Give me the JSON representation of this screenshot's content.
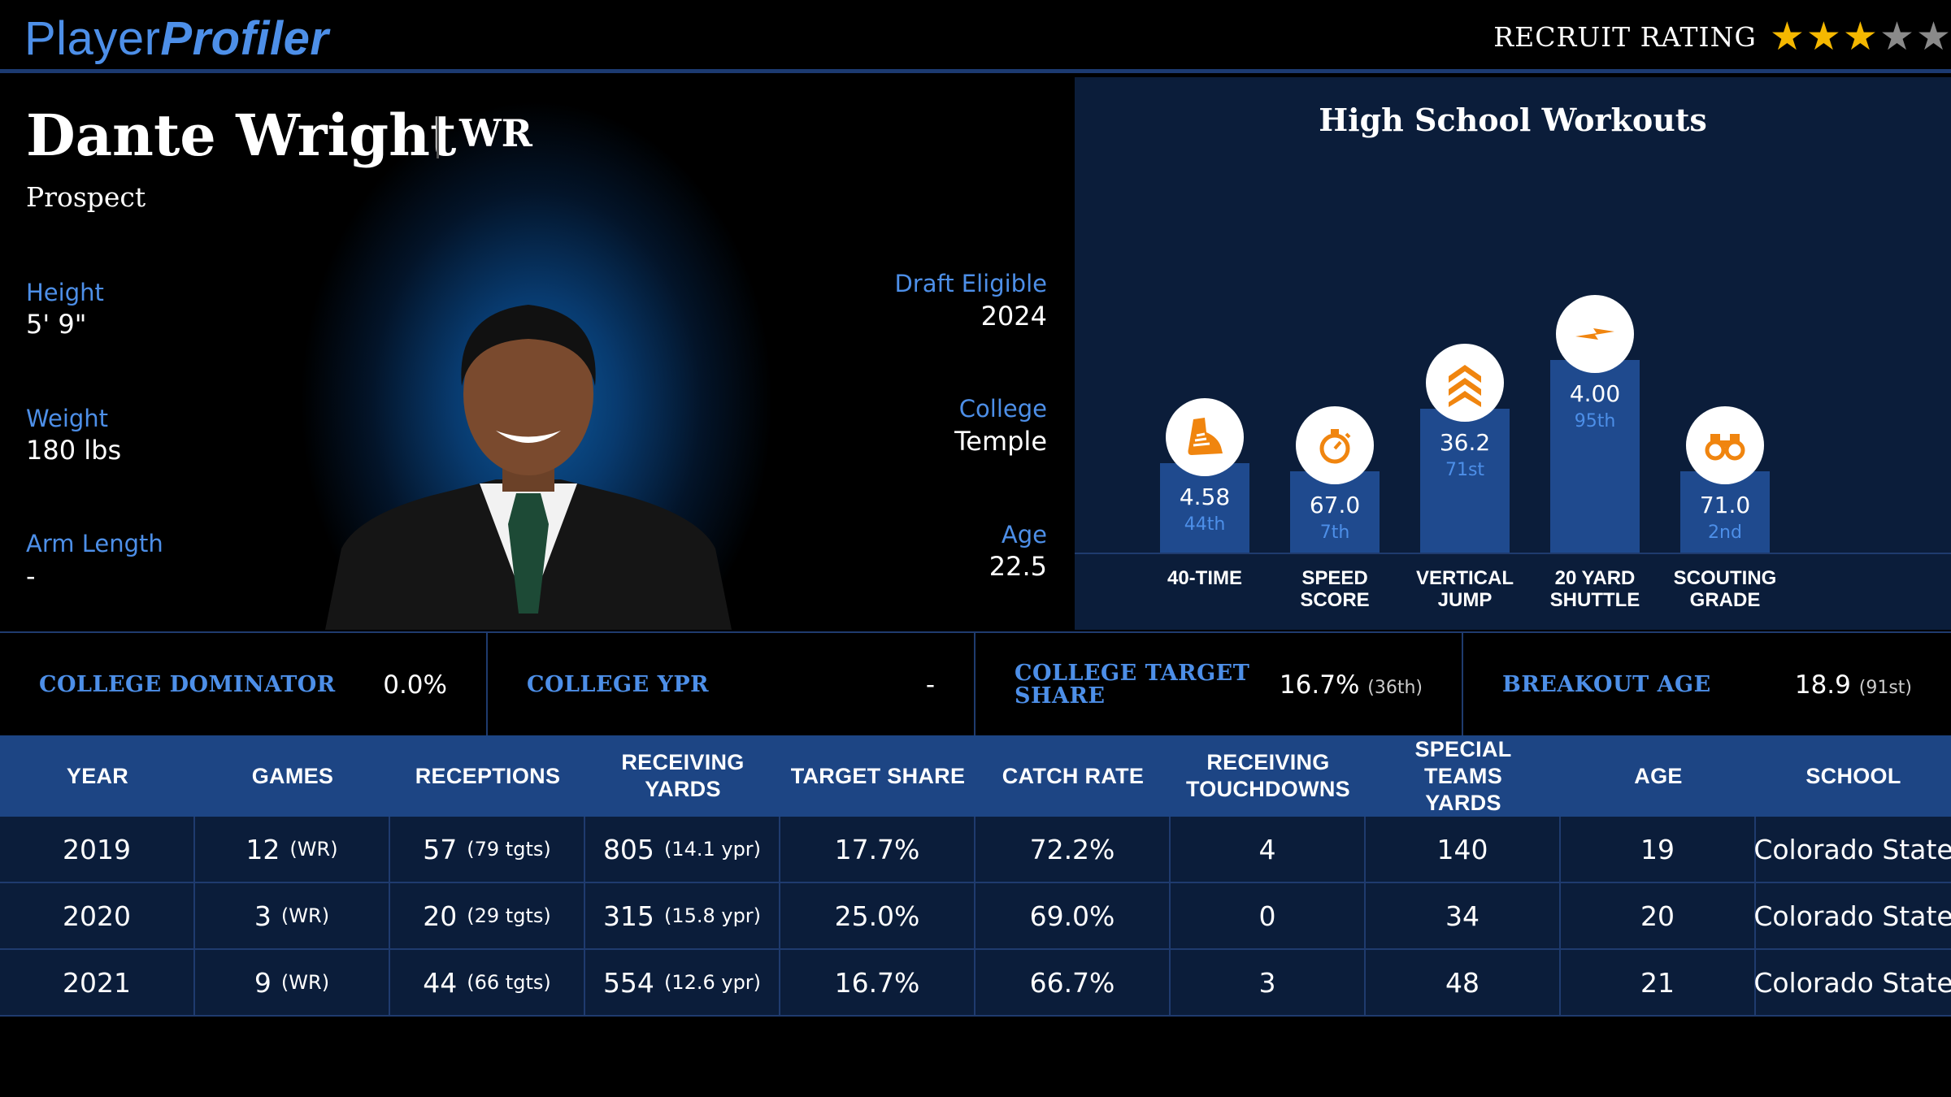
{
  "header": {
    "logo_part1": "Player",
    "logo_part2": "Profiler",
    "rating_label": "RECRUIT RATING",
    "rating_value": 3,
    "rating_max": 5,
    "star_on_color": "#f5b800",
    "star_off_color": "#8a8a8a"
  },
  "player": {
    "name": "Dante Wright",
    "position": "WR",
    "status": "Prospect",
    "height_label": "Height",
    "height": "5' 9\"",
    "weight_label": "Weight",
    "weight": "180 lbs",
    "arm_label": "Arm Length",
    "arm": "-",
    "draft_label": "Draft Eligible",
    "draft": "2024",
    "college_label": "College",
    "college": "Temple",
    "age_label": "Age",
    "age": "22.5"
  },
  "workouts": {
    "title": "High School Workouts",
    "items": [
      {
        "label_line1": "40-TIME",
        "label_line2": "",
        "value": "4.58",
        "percentile": "44th",
        "percentile_value": 44,
        "icon": "shoe-icon"
      },
      {
        "label_line1": "SPEED",
        "label_line2": "SCORE",
        "value": "67.0",
        "percentile": "7th",
        "percentile_value": 7,
        "icon": "stopwatch-icon"
      },
      {
        "label_line1": "VERTICAL",
        "label_line2": "JUMP",
        "value": "36.2",
        "percentile": "71st",
        "percentile_value": 71,
        "icon": "chevrons-up-icon"
      },
      {
        "label_line1": "20 YARD",
        "label_line2": "SHUTTLE",
        "value": "4.00",
        "percentile": "95th",
        "percentile_value": 95,
        "icon": "lightning-icon"
      },
      {
        "label_line1": "SCOUTING",
        "label_line2": "GRADE",
        "value": "71.0",
        "percentile": "2nd",
        "percentile_value": 2,
        "icon": "binoculars-icon"
      }
    ]
  },
  "metrics": [
    {
      "label": "COLLEGE DOMINATOR",
      "value": "0.0%",
      "sub": ""
    },
    {
      "label": "COLLEGE YPR",
      "value": "-",
      "sub": ""
    },
    {
      "label": "COLLEGE TARGET SHARE",
      "value": "16.7%",
      "sub": "(36th)"
    },
    {
      "label": "BREAKOUT AGE",
      "value": "18.9",
      "sub": "(91st)"
    }
  ],
  "table": {
    "headers": [
      "YEAR",
      "GAMES",
      "RECEPTIONS",
      "RECEIVING YARDS",
      "TARGET SHARE",
      "CATCH RATE",
      "RECEIVING TOUCHDOWNS",
      "SPECIAL TEAMS YARDS",
      "AGE",
      "SCHOOL"
    ],
    "rows": [
      {
        "year": "2019",
        "games": "12",
        "games_sub": "(WR)",
        "rec": "57",
        "rec_sub": "(79 tgts)",
        "yds": "805",
        "yds_sub": "(14.1 ypr)",
        "ts": "17.7%",
        "cr": "72.2%",
        "td": "4",
        "st": "140",
        "age": "19",
        "school": "Colorado State"
      },
      {
        "year": "2020",
        "games": "3",
        "games_sub": "(WR)",
        "rec": "20",
        "rec_sub": "(29 tgts)",
        "yds": "315",
        "yds_sub": "(15.8 ypr)",
        "ts": "25.0%",
        "cr": "69.0%",
        "td": "0",
        "st": "34",
        "age": "20",
        "school": "Colorado State"
      },
      {
        "year": "2021",
        "games": "9",
        "games_sub": "(WR)",
        "rec": "44",
        "rec_sub": "(66 tgts)",
        "yds": "554",
        "yds_sub": "(12.6 ypr)",
        "ts": "16.7%",
        "cr": "66.7%",
        "td": "3",
        "st": "48",
        "age": "21",
        "school": "Colorado State"
      }
    ]
  }
}
